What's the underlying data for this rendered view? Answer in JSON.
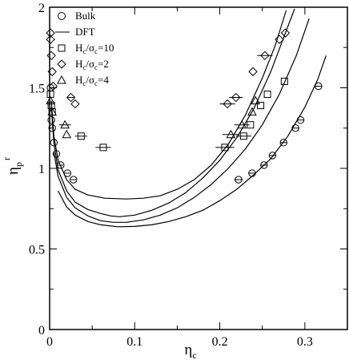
{
  "chart_data": {
    "type": "scatter",
    "title": "",
    "xlabel": {
      "main": "η",
      "sub": "c"
    },
    "ylabel": {
      "main": "η",
      "sub": "p",
      "sup": "r"
    },
    "xlim": [
      0,
      0.35
    ],
    "ylim": [
      0,
      2
    ],
    "xticks": [
      0,
      0.1,
      0.2,
      0.3
    ],
    "xtick_labels": [
      "0",
      "0.1",
      "0.2",
      "0.3"
    ],
    "yticks": [
      0,
      0.5,
      1,
      1.5,
      2
    ],
    "ytick_labels": [
      "0",
      "0.5",
      "1",
      "1.5",
      "2"
    ],
    "grid": false,
    "legend_position": "top-left",
    "legend": [
      {
        "marker": "circle",
        "label": "Bulk"
      },
      {
        "marker": "line",
        "label": "DFT"
      },
      {
        "marker": "square",
        "label_main": "H",
        "label_sub1": "c",
        "label_mid": "/σ",
        "label_sub2": "c",
        "label_end": "=10"
      },
      {
        "marker": "diamond",
        "label_main": "H",
        "label_sub1": "c",
        "label_mid": "/σ",
        "label_sub2": "c",
        "label_end": "=2"
      },
      {
        "marker": "triangle",
        "label_main": "H",
        "label_sub1": "c",
        "label_mid": "/σ",
        "label_sub2": "c",
        "label_end": "=4"
      }
    ],
    "series": [
      {
        "name": "Bulk",
        "marker": "circle",
        "points": [
          [
            0.001,
            1.5
          ],
          [
            0.002,
            1.3
          ],
          [
            0.003,
            1.25
          ],
          [
            0.005,
            1.16
          ],
          [
            0.008,
            1.09
          ],
          [
            0.013,
            1.02
          ],
          [
            0.021,
            0.97
          ],
          [
            0.028,
            0.93
          ],
          [
            0.222,
            0.93
          ],
          [
            0.238,
            0.97
          ],
          [
            0.252,
            1.02
          ],
          [
            0.262,
            1.08
          ],
          [
            0.275,
            1.16
          ],
          [
            0.289,
            1.25
          ],
          [
            0.295,
            1.3
          ],
          [
            0.316,
            1.51
          ]
        ]
      },
      {
        "name": "H_c/sigma_c=10",
        "marker": "square",
        "points": [
          [
            0.001,
            1.46
          ],
          [
            0.002,
            1.39
          ],
          [
            0.003,
            1.35
          ],
          [
            0.037,
            1.2
          ],
          [
            0.063,
            1.13
          ],
          [
            0.206,
            1.13
          ],
          [
            0.228,
            1.2
          ],
          [
            0.236,
            1.27
          ],
          [
            0.248,
            1.39
          ],
          [
            0.256,
            1.46
          ],
          [
            0.276,
            1.54
          ]
        ]
      },
      {
        "name": "H_c/sigma_c=2",
        "marker": "diamond",
        "points": [
          [
            0.001,
            1.84
          ],
          [
            0.001,
            1.8
          ],
          [
            0.002,
            1.7
          ],
          [
            0.003,
            1.6
          ],
          [
            0.004,
            1.51
          ],
          [
            0.025,
            1.44
          ],
          [
            0.03,
            1.4
          ],
          [
            0.209,
            1.4
          ],
          [
            0.219,
            1.44
          ],
          [
            0.239,
            1.6
          ],
          [
            0.253,
            1.7
          ],
          [
            0.27,
            1.8
          ],
          [
            0.277,
            1.84
          ]
        ]
      },
      {
        "name": "H_c/sigma_c=4",
        "marker": "triangle",
        "points": [
          [
            0.001,
            1.42
          ],
          [
            0.003,
            1.35
          ],
          [
            0.018,
            1.27
          ],
          [
            0.02,
            1.21
          ],
          [
            0.213,
            1.21
          ],
          [
            0.226,
            1.27
          ],
          [
            0.238,
            1.35
          ],
          [
            0.242,
            1.42
          ]
        ]
      }
    ],
    "error_bars_x": [
      {
        "x": 0.063,
        "y": 1.13,
        "half_width": 0.009
      },
      {
        "x": 0.037,
        "y": 1.2,
        "half_width": 0.007
      },
      {
        "x": 0.018,
        "y": 1.27,
        "half_width": 0.007
      },
      {
        "x": 0.025,
        "y": 1.44,
        "half_width": 0.004
      },
      {
        "x": 0.206,
        "y": 1.13,
        "half_width": 0.011
      },
      {
        "x": 0.222,
        "y": 0.93,
        "half_width": 0.005
      },
      {
        "x": 0.213,
        "y": 1.21,
        "half_width": 0.01
      },
      {
        "x": 0.226,
        "y": 1.27,
        "half_width": 0.009
      },
      {
        "x": 0.228,
        "y": 1.2,
        "half_width": 0.009
      },
      {
        "x": 0.209,
        "y": 1.4,
        "half_width": 0.009
      },
      {
        "x": 0.219,
        "y": 1.44,
        "half_width": 0.008
      },
      {
        "x": 0.253,
        "y": 1.7,
        "half_width": 0.009
      },
      {
        "x": 0.238,
        "y": 0.97,
        "half_width": 0.004
      },
      {
        "x": 0.252,
        "y": 1.02,
        "half_width": 0.004
      },
      {
        "x": 0.262,
        "y": 1.08,
        "half_width": 0.004
      },
      {
        "x": 0.275,
        "y": 1.16,
        "half_width": 0.004
      },
      {
        "x": 0.289,
        "y": 1.25,
        "half_width": 0.004
      },
      {
        "x": 0.295,
        "y": 1.3,
        "half_width": 0.004
      },
      {
        "x": 0.316,
        "y": 1.51,
        "half_width": 0.004
      },
      {
        "x": 0.028,
        "y": 0.93,
        "half_width": 0.003
      },
      {
        "x": 0.021,
        "y": 0.97,
        "half_width": 0.003
      },
      {
        "x": 0.013,
        "y": 1.02,
        "half_width": 0.003
      }
    ],
    "dft_curves": [
      {
        "name": "DFT curve 1",
        "points": [
          [
            0.002,
            1.42
          ],
          [
            0.005,
            1.2
          ],
          [
            0.01,
            1.05
          ],
          [
            0.02,
            0.93
          ],
          [
            0.03,
            0.87
          ],
          [
            0.045,
            0.835
          ],
          [
            0.065,
            0.815
          ],
          [
            0.09,
            0.81
          ],
          [
            0.11,
            0.815
          ],
          [
            0.13,
            0.83
          ],
          [
            0.15,
            0.87
          ],
          [
            0.17,
            0.93
          ],
          [
            0.19,
            1.02
          ],
          [
            0.21,
            1.15
          ],
          [
            0.23,
            1.33
          ],
          [
            0.25,
            1.56
          ],
          [
            0.265,
            1.76
          ],
          [
            0.278,
            1.98
          ]
        ]
      },
      {
        "name": "DFT curve 2",
        "points": [
          [
            0.002,
            1.38
          ],
          [
            0.005,
            1.16
          ],
          [
            0.01,
            0.99
          ],
          [
            0.02,
            0.86
          ],
          [
            0.03,
            0.79
          ],
          [
            0.045,
            0.745
          ],
          [
            0.06,
            0.72
          ],
          [
            0.072,
            0.705
          ],
          [
            0.082,
            0.7
          ],
          [
            0.1,
            0.71
          ],
          [
            0.12,
            0.74
          ],
          [
            0.14,
            0.785
          ],
          [
            0.16,
            0.85
          ],
          [
            0.18,
            0.94
          ],
          [
            0.2,
            1.05
          ],
          [
            0.22,
            1.19
          ],
          [
            0.24,
            1.37
          ],
          [
            0.26,
            1.6
          ],
          [
            0.28,
            1.88
          ],
          [
            0.288,
            1.99
          ]
        ]
      },
      {
        "name": "DFT curve 3",
        "points": [
          [
            0.005,
            1.1
          ],
          [
            0.01,
            0.95
          ],
          [
            0.02,
            0.82
          ],
          [
            0.03,
            0.755
          ],
          [
            0.045,
            0.705
          ],
          [
            0.06,
            0.675
          ],
          [
            0.075,
            0.665
          ],
          [
            0.09,
            0.665
          ],
          [
            0.11,
            0.68
          ],
          [
            0.13,
            0.71
          ],
          [
            0.15,
            0.755
          ],
          [
            0.17,
            0.82
          ],
          [
            0.19,
            0.9
          ],
          [
            0.21,
            1.0
          ],
          [
            0.23,
            1.12
          ],
          [
            0.25,
            1.27
          ],
          [
            0.27,
            1.46
          ],
          [
            0.29,
            1.7
          ],
          [
            0.305,
            1.93
          ]
        ]
      },
      {
        "name": "DFT curve 4",
        "points": [
          [
            0.01,
            0.86
          ],
          [
            0.02,
            0.76
          ],
          [
            0.03,
            0.71
          ],
          [
            0.045,
            0.67
          ],
          [
            0.06,
            0.65
          ],
          [
            0.08,
            0.638
          ],
          [
            0.1,
            0.64
          ],
          [
            0.12,
            0.65
          ],
          [
            0.14,
            0.67
          ],
          [
            0.16,
            0.7
          ],
          [
            0.18,
            0.74
          ],
          [
            0.2,
            0.8
          ],
          [
            0.22,
            0.87
          ],
          [
            0.24,
            0.96
          ],
          [
            0.26,
            1.06
          ],
          [
            0.28,
            1.2
          ],
          [
            0.3,
            1.38
          ],
          [
            0.315,
            1.55
          ],
          [
            0.325,
            1.7
          ]
        ]
      }
    ]
  }
}
